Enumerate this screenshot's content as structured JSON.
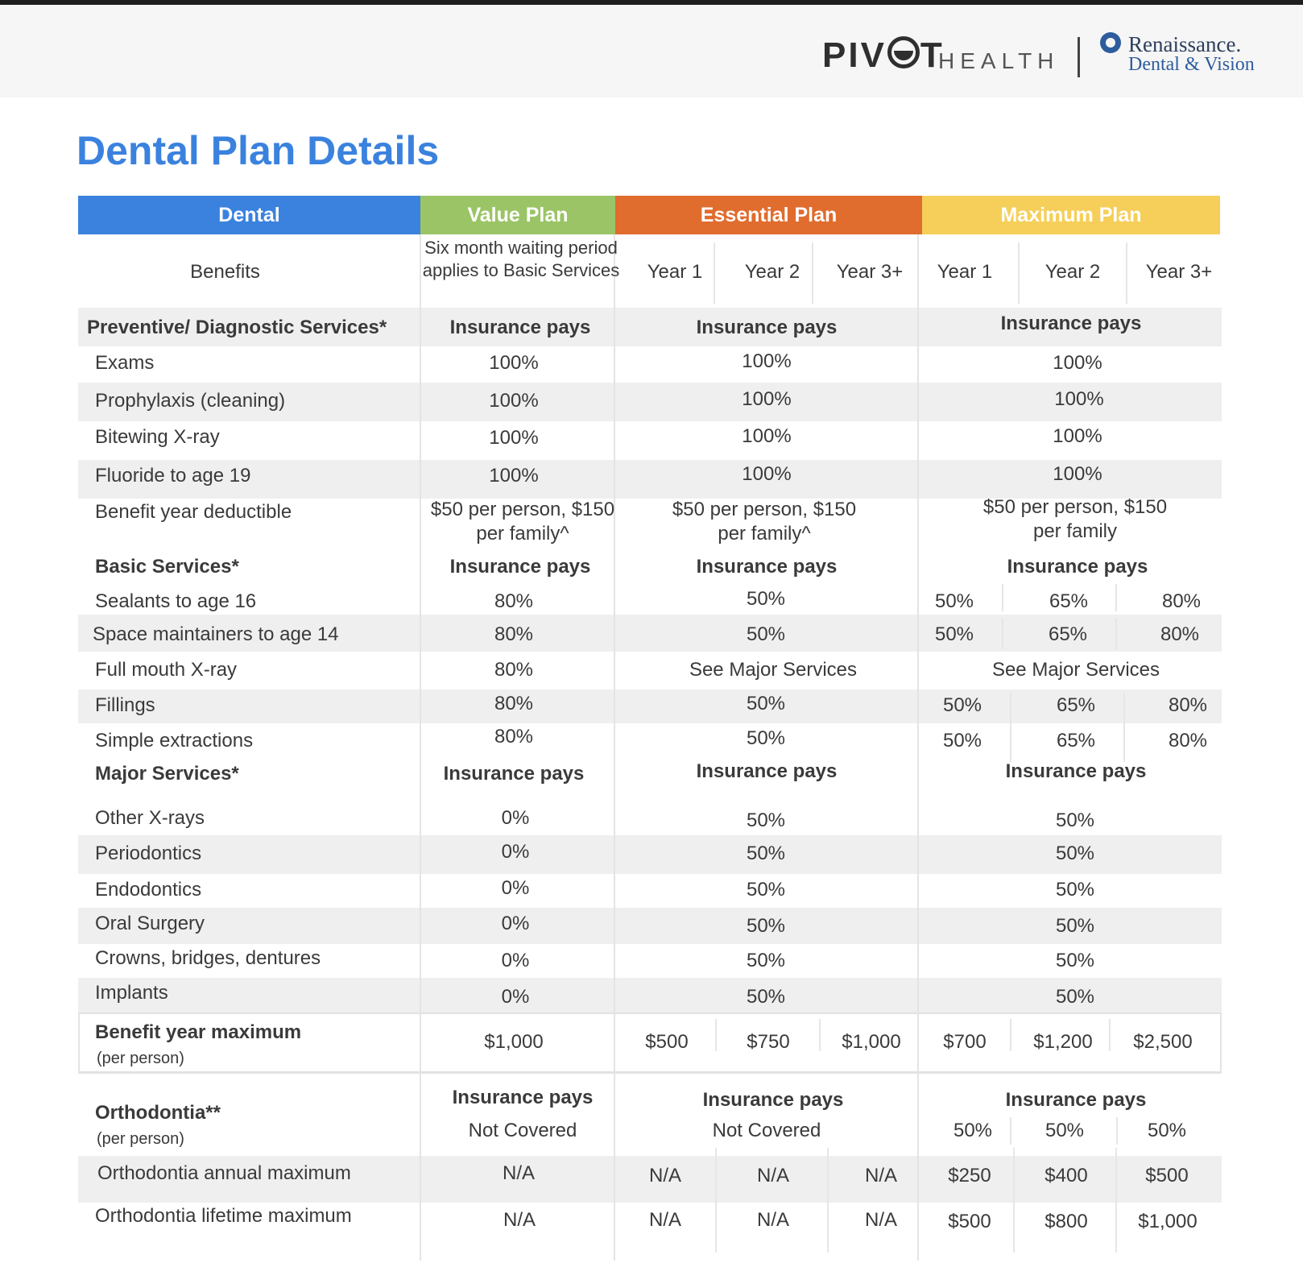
{
  "brand": {
    "pivot_a": "PIV",
    "pivot_b": "T",
    "health": "HEALTH",
    "ren_name": "Renaissance.",
    "ren_sub": "Dental & Vision"
  },
  "title": "Dental Plan Details",
  "colors": {
    "dental": "#3a82de",
    "value": "#9bc466",
    "essential": "#e06c2e",
    "maximum": "#f5cf5a",
    "title": "#3a82de"
  },
  "headers": {
    "dental": "Dental",
    "value": "Value Plan",
    "essential": "Essential Plan",
    "maximum": "Maximum Plan"
  },
  "benefits_row": {
    "label": "Benefits",
    "value_note": "Six month waiting period applies to Basic Services",
    "years": [
      "Year 1",
      "Year 2",
      "Year 3+",
      "Year 1",
      "Year 2",
      "Year 3+"
    ]
  },
  "preventive": {
    "label": "Preventive/ Diagnostic Services*",
    "pays": "Insurance pays",
    "rows": [
      {
        "label": "Exams",
        "value": "100%",
        "essential": "100%",
        "maximum": "100%"
      },
      {
        "label": "Prophylaxis (cleaning)",
        "value": "100%",
        "essential": "100%",
        "maximum": "100%"
      },
      {
        "label": "Bitewing X-ray",
        "value": "100%",
        "essential": "100%",
        "maximum": "100%"
      },
      {
        "label": "Fluoride to age 19",
        "value": "100%",
        "essential": "100%",
        "maximum": "100%"
      }
    ]
  },
  "deductible": {
    "label": "Benefit year deductible",
    "value": "$50 per person, $150 per family^",
    "essential": "$50 per person, $150 per family^",
    "maximum": "$50 per person, $150 per family"
  },
  "basic": {
    "label": "Basic Services*",
    "pays": "Insurance pays",
    "rows": [
      {
        "label": "Sealants to age 16",
        "value": "80%",
        "essential": "50%",
        "maximum": [
          "50%",
          "65%",
          "80%"
        ]
      },
      {
        "label": "Space maintainers to age 14",
        "value": "80%",
        "essential": "50%",
        "maximum": [
          "50%",
          "65%",
          "80%"
        ]
      },
      {
        "label": "Full mouth X-ray",
        "value": "80%",
        "essential": "See Major Services",
        "maximum": "See Major Services"
      },
      {
        "label": "Fillings",
        "value": "80%",
        "essential": "50%",
        "maximum": [
          "50%",
          "65%",
          "80%"
        ]
      },
      {
        "label": "Simple extractions",
        "value": "80%",
        "essential": "50%",
        "maximum": [
          "50%",
          "65%",
          "80%"
        ]
      }
    ]
  },
  "major": {
    "label": "Major Services*",
    "pays": "Insurance pays",
    "rows": [
      {
        "label": "Other X-rays",
        "value": "0%",
        "essential": "50%",
        "maximum": "50%"
      },
      {
        "label": "Periodontics",
        "value": "0%",
        "essential": "50%",
        "maximum": "50%"
      },
      {
        "label": "Endodontics",
        "value": "0%",
        "essential": "50%",
        "maximum": "50%"
      },
      {
        "label": "Oral Surgery",
        "value": "0%",
        "essential": "50%",
        "maximum": "50%"
      },
      {
        "label": "Crowns, bridges, dentures",
        "value": "0%",
        "essential": "50%",
        "maximum": "50%"
      },
      {
        "label": "Implants",
        "value": "0%",
        "essential": "50%",
        "maximum": "50%"
      }
    ]
  },
  "benefit_max": {
    "label": "Benefit year maximum",
    "sub": "(per person)",
    "value": "$1,000",
    "essential": [
      "$500",
      "$750",
      "$1,000"
    ],
    "maximum": [
      "$700",
      "$1,200",
      "$2,500"
    ]
  },
  "ortho": {
    "label": "Orthodontia**",
    "sub": "(per person)",
    "pays": "Insurance pays",
    "value": "Not Covered",
    "essential": "Not Covered",
    "maximum": [
      "50%",
      "50%",
      "50%"
    ]
  },
  "ortho_annual": {
    "label": "Orthodontia annual maximum",
    "value": "N/A",
    "essential": [
      "N/A",
      "N/A",
      "N/A"
    ],
    "maximum": [
      "$250",
      "$400",
      "$500"
    ]
  },
  "ortho_lifetime": {
    "label": "Orthodontia lifetime maximum",
    "value": "N/A",
    "essential": [
      "N/A",
      "N/A",
      "N/A"
    ],
    "maximum": [
      "$500",
      "$800",
      "$1,000"
    ]
  }
}
